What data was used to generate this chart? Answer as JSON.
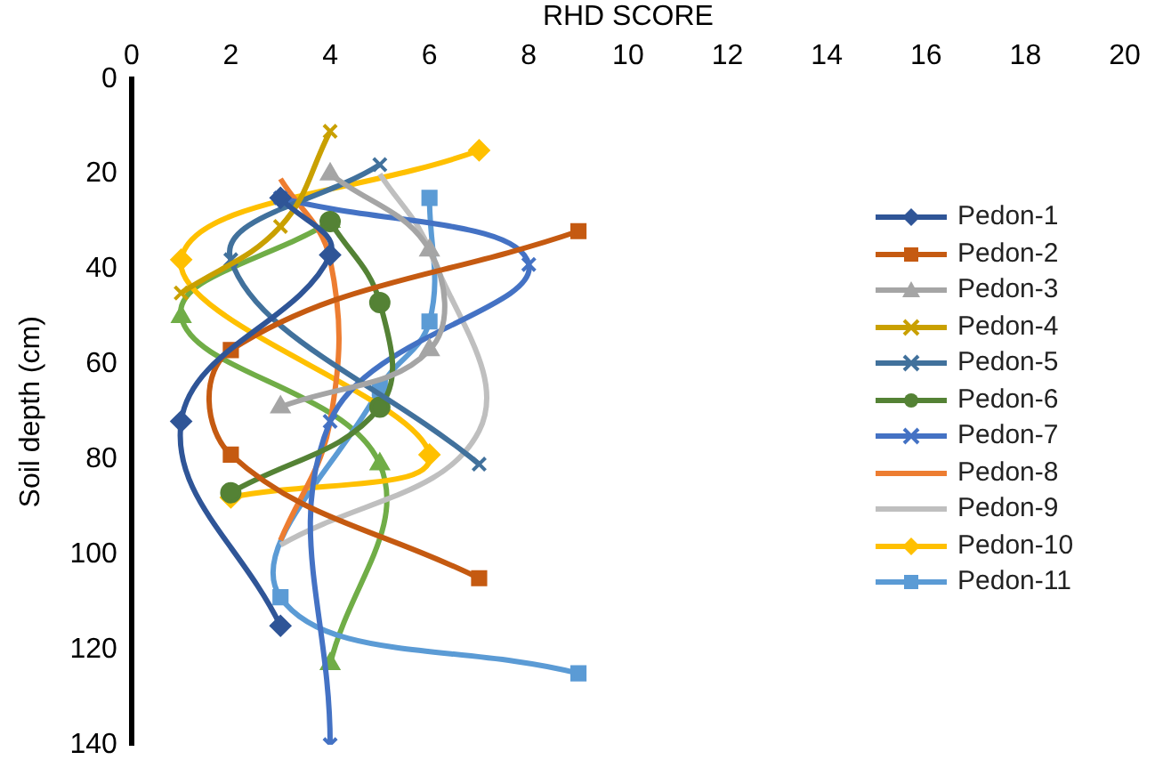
{
  "chart_data": {
    "type": "line",
    "xlabel": "RHD SCORE",
    "ylabel": "Soil depth (cm)",
    "xlim": [
      0,
      20
    ],
    "xticks": [
      0,
      2,
      4,
      6,
      8,
      10,
      12,
      14,
      16,
      18,
      20
    ],
    "ylim": [
      140,
      0
    ],
    "yticks": [
      0,
      20,
      40,
      60,
      80,
      100,
      120,
      140
    ],
    "grid": false,
    "legend": "right",
    "series": [
      {
        "name": "Pedon-1",
        "color": "#2f5597",
        "marker": "diamond",
        "x": [
          3,
          4,
          1,
          3
        ],
        "values": [
          25,
          37,
          72,
          115
        ]
      },
      {
        "name": "Pedon-2",
        "color": "#c55a11",
        "marker": "square",
        "x": [
          9,
          2,
          2,
          7
        ],
        "values": [
          32,
          57,
          79,
          105
        ]
      },
      {
        "name": "Pedon-3",
        "color": "#a5a5a5",
        "marker": "triangle",
        "x": [
          4,
          6,
          6,
          3
        ],
        "values": [
          20,
          36,
          57,
          69
        ]
      },
      {
        "name": "Pedon-4",
        "color": "#c9a000",
        "marker": "cross",
        "x": [
          4,
          3,
          1
        ],
        "values": [
          11,
          31,
          45
        ]
      },
      {
        "name": "Pedon-5",
        "color": "#41719c",
        "marker": "cross",
        "x": [
          5,
          2,
          7
        ],
        "values": [
          18,
          38,
          81
        ]
      },
      {
        "name": "Pedon-6",
        "color": "#548235",
        "marker": "circle",
        "x": [
          4,
          5,
          5,
          2
        ],
        "values": [
          30,
          47,
          69,
          87
        ]
      },
      {
        "name": "Pedon-7",
        "color": "#4472c4",
        "marker": "cross",
        "x": [
          3,
          8,
          4,
          4
        ],
        "values": [
          25,
          39,
          72,
          140
        ]
      },
      {
        "name": "Pedon-8",
        "color": "#ed7d31",
        "marker": "none",
        "x": [
          3,
          4,
          4,
          3
        ],
        "values": [
          21,
          38,
          72,
          97
        ]
      },
      {
        "name": "Pedon-9",
        "color": "#bfbfbf",
        "marker": "none",
        "x": [
          5,
          6,
          7,
          3
        ],
        "values": [
          20,
          36,
          74,
          98
        ]
      },
      {
        "name": "Pedon-10",
        "color": "#ffc000",
        "marker": "diamond",
        "x": [
          7,
          1,
          6,
          2
        ],
        "values": [
          15,
          38,
          79,
          88
        ]
      },
      {
        "name": "Pedon-11",
        "color": "#5b9bd5",
        "marker": "square",
        "x": [
          6,
          6,
          5,
          3,
          9
        ],
        "values": [
          25,
          51,
          65,
          109,
          125
        ]
      },
      {
        "color": "#70ad47",
        "marker": "triangle",
        "x": [
          4,
          1,
          5,
          4
        ],
        "values": [
          30,
          50,
          81,
          123
        ]
      }
    ]
  }
}
